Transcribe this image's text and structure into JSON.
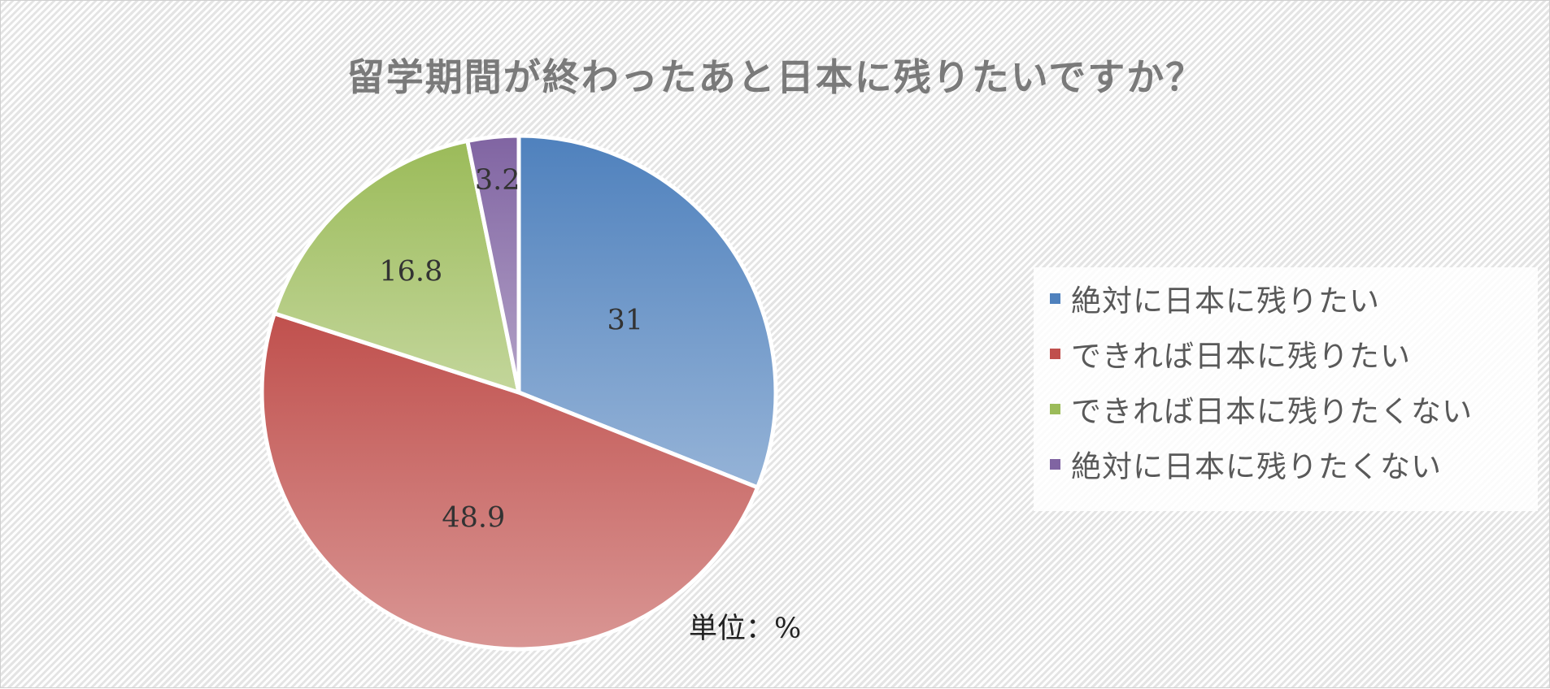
{
  "chart_data": {
    "type": "pie",
    "title": "留学期間が終わったあと日本に残りたいですか？",
    "unit_note": "単位：%",
    "categories": [
      "絶対に日本に残りたい",
      "できれば日本に残りたい",
      "できれば日本に残りたくない",
      "絶対に日本に残りたくない"
    ],
    "values": [
      31,
      48.9,
      16.8,
      3.2
    ],
    "data_labels": [
      "31",
      "48.9",
      "16.8",
      "3.2"
    ],
    "colors": [
      "#4f81bd",
      "#c0504d",
      "#9bbb59",
      "#8064a2"
    ],
    "legend_position": "right",
    "start_angle": "12 o'clock, clockwise"
  }
}
